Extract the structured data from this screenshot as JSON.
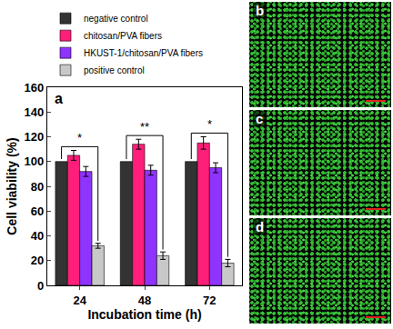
{
  "chart_data": {
    "type": "bar",
    "panel_label": "a",
    "x_label": "Incubation time (h)",
    "y_label": "Cell viability (%)",
    "categories": [
      "24",
      "48",
      "72"
    ],
    "series": [
      {
        "name": "negative control",
        "color": "#333333",
        "values": [
          100,
          100,
          100
        ]
      },
      {
        "name": "chitosan/PVA fibers",
        "color": "#ff1f7a",
        "values": [
          105,
          114,
          115
        ],
        "errors": [
          4,
          4,
          5
        ]
      },
      {
        "name": "HKUST-1/chitosan/PVA fibers",
        "color": "#8f33ff",
        "values": [
          92,
          93,
          95
        ],
        "errors": [
          4,
          4,
          4
        ]
      },
      {
        "name": "positive control",
        "color": "#c8c8c8",
        "values": [
          32,
          24,
          18
        ],
        "errors": [
          2,
          3,
          3
        ]
      }
    ],
    "ylim": [
      0,
      160
    ],
    "yticks": [
      0,
      20,
      40,
      60,
      80,
      100,
      120,
      140,
      160
    ],
    "legend": "top",
    "significance": [
      "*",
      "**",
      "*"
    ]
  },
  "image_panels": [
    "b",
    "c",
    "d"
  ]
}
